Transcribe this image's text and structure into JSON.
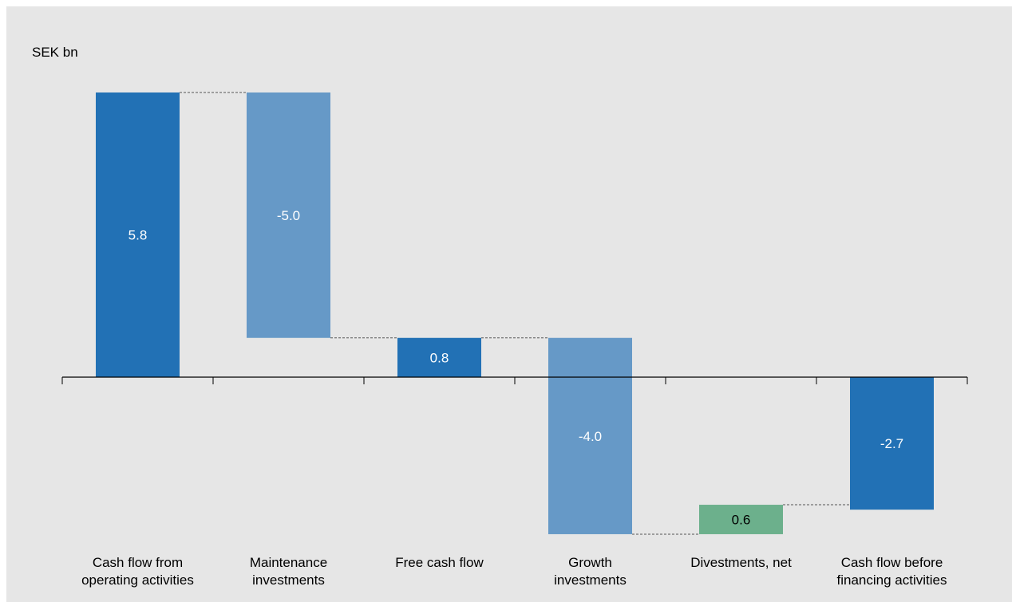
{
  "chart_data": {
    "type": "bar",
    "subtype": "waterfall",
    "unit_label": "SEK bn",
    "categories": [
      [
        "Cash flow from",
        "operating activities"
      ],
      [
        "Maintenance",
        "investments"
      ],
      [
        "Free cash flow"
      ],
      [
        "Growth",
        "investments"
      ],
      [
        "Divestments, net"
      ],
      [
        "Cash flow before",
        "financing activities"
      ]
    ],
    "values": [
      5.8,
      -5.0,
      0.8,
      -4.0,
      0.6,
      -2.7
    ],
    "value_labels": [
      "5.8",
      "-5.0",
      "0.8",
      "-4.0",
      "0.6",
      "-2.7"
    ],
    "bar_kinds": [
      "total",
      "delta",
      "total",
      "delta",
      "delta",
      "total"
    ],
    "ylim": [
      -3.3,
      6.4
    ],
    "grid": false,
    "legend": "none",
    "colors": {
      "total": "#2271b5",
      "negative_delta": "#6699c7",
      "positive_delta": "#6cb08c",
      "axis": "#000000",
      "connector": "#555555",
      "label_on_dark": "#ffffff",
      "label_on_light": "#000000"
    }
  }
}
